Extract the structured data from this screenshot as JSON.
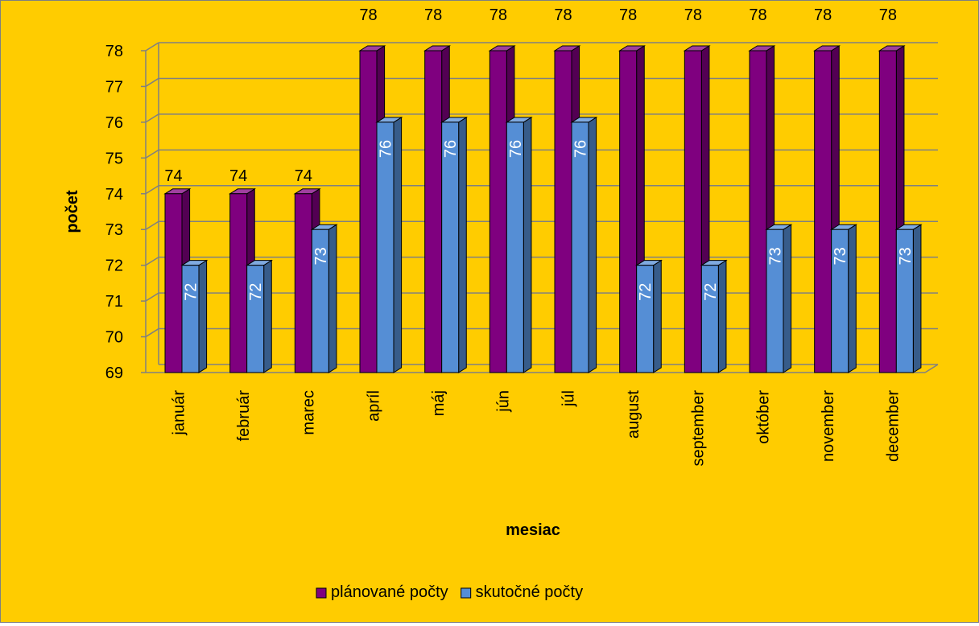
{
  "chart_data": {
    "type": "bar",
    "categories": [
      "január",
      "február",
      "marec",
      "apríl",
      "máj",
      "jún",
      "júl",
      "august",
      "september",
      "október",
      "november",
      "december"
    ],
    "series": [
      {
        "name": "plánované počty",
        "values": [
          74,
          74,
          74,
          78,
          78,
          78,
          78,
          78,
          78,
          78,
          78,
          78
        ],
        "color": "#7f007f"
      },
      {
        "name": "skutočné počty",
        "values": [
          72,
          72,
          73,
          76,
          76,
          76,
          76,
          72,
          72,
          73,
          73,
          73
        ],
        "color": "#558ed5"
      }
    ],
    "xlabel": "mesiac",
    "ylabel": "počet",
    "ylim": [
      69,
      78
    ],
    "yticks": [
      69,
      70,
      71,
      72,
      73,
      74,
      75,
      76,
      77,
      78
    ],
    "grid": true,
    "legend": "bottom",
    "background": "#ffcc00",
    "style": "3d-clustered-column"
  }
}
